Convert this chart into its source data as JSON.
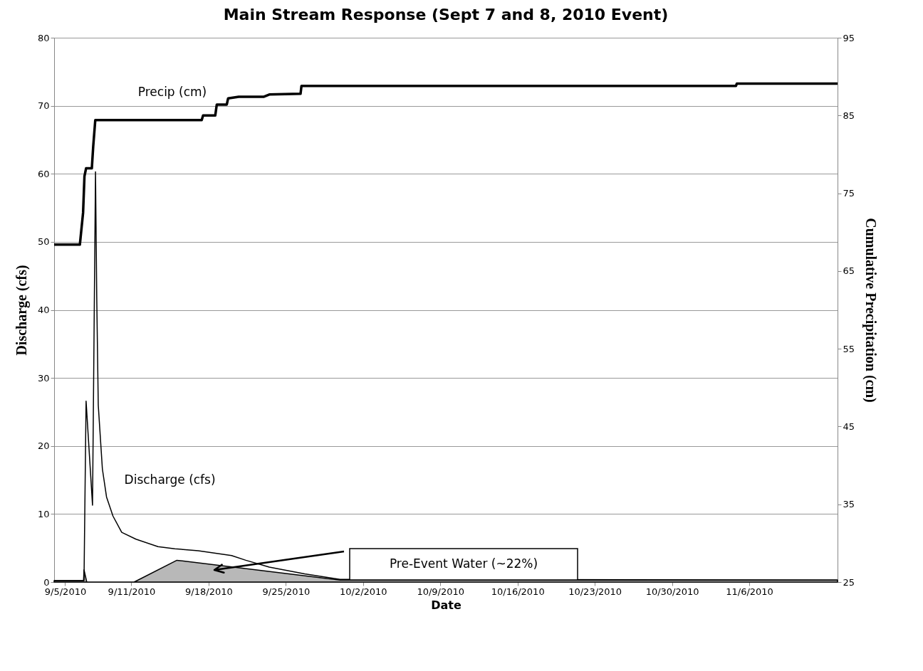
{
  "chart_data": {
    "type": "line",
    "title": "Main Stream Response (Sept 7 and 8, 2010 Event)",
    "xlabel": "Date",
    "ylabel": "Discharge (cfs)",
    "y2label": "Cumulative Precipitation (cm)",
    "xlim": [
      "2010-09-04",
      "2010-11-14"
    ],
    "xticks": [
      {
        "value": "2010-09-05",
        "label": "9/5/2010"
      },
      {
        "value": "2010-09-11",
        "label": "9/11/2010"
      },
      {
        "value": "2010-09-18",
        "label": "9/18/2010"
      },
      {
        "value": "2010-09-25",
        "label": "9/25/2010"
      },
      {
        "value": "2010-10-02",
        "label": "10/2/2010"
      },
      {
        "value": "2010-10-09",
        "label": "10/9/2010"
      },
      {
        "value": "2010-10-16",
        "label": "10/16/2010"
      },
      {
        "value": "2010-10-23",
        "label": "10/23/2010"
      },
      {
        "value": "2010-10-30",
        "label": "10/30/2010"
      },
      {
        "value": "2010-11-06",
        "label": "11/6/2010"
      }
    ],
    "ylim": [
      0,
      80
    ],
    "yticks": [
      0,
      10,
      20,
      30,
      40,
      50,
      60,
      70,
      80
    ],
    "y2lim": [
      25,
      95
    ],
    "y2ticks": [
      25,
      35,
      45,
      55,
      65,
      75,
      85,
      95
    ],
    "grid": "y",
    "series": [
      {
        "type": "area",
        "color": "#a6a6a6",
        "x": [
          "2010-09-04",
          "2010-09-06T16:00",
          "2010-09-06T17:00",
          "2010-09-06T23:00",
          "2010-09-11T06:00",
          "2010-09-15T03:00",
          "2010-09-29T22:00",
          "2010-11-14"
        ],
        "values": [
          0.2,
          0.2,
          1.8,
          0,
          0,
          3.2,
          0.3,
          0.3
        ]
      },
      {
        "name": "Discharge (cfs)",
        "color": "#000000",
        "x": [
          "2010-09-04",
          "2010-09-06T17:00",
          "2010-09-06T21:30",
          "2010-09-07T11:30",
          "2010-09-07T18:00",
          "2010-09-07T20:40",
          "2010-09-08T00:00",
          "2010-09-08T09:00",
          "2010-09-08T18:00",
          "2010-09-09T08:00",
          "2010-09-10T03:00",
          "2010-09-11T10:00",
          "2010-09-13T10:00",
          "2010-09-14T22:30",
          "2010-09-17T01:30",
          "2010-09-20T02:00",
          "2010-09-21T09:00",
          "2010-09-23T12:00",
          "2010-09-26T17:00",
          "2010-09-29T22:00",
          "2010-11-14"
        ],
        "values": [
          0.2,
          0.2,
          26.6,
          11.3,
          60.3,
          42,
          26,
          16.6,
          12.5,
          9.7,
          7.3,
          6.3,
          5.2,
          4.9,
          4.6,
          3.9,
          3.2,
          2.2,
          1.2,
          0.4,
          0.3
        ]
      },
      {
        "name": "Precip (cm)",
        "axis": "y2",
        "color": "#000000",
        "x": [
          "2010-09-04",
          "2010-09-06T08:00",
          "2010-09-06T15:00",
          "2010-09-06T18:00",
          "2010-09-06T21:30",
          "2010-09-07T10:00",
          "2010-09-07T13:00",
          "2010-09-07T17:30",
          "2010-09-17T09:00",
          "2010-09-17T12:00",
          "2010-09-18T14:30",
          "2010-09-18T17:45",
          "2010-09-19T15:30",
          "2010-09-19T18:30",
          "2010-09-20T17:30",
          "2010-09-22T23:30",
          "2010-09-23T12:00",
          "2010-09-26T08:00",
          "2010-09-26T10:00",
          "2010-11-04T19:00",
          "2010-11-04T21:00",
          "2010-11-14"
        ],
        "values": [
          68.4,
          68.4,
          72.5,
          77.2,
          78.2,
          78.2,
          81,
          84.4,
          84.4,
          85.0,
          85.0,
          86.4,
          86.4,
          87.2,
          87.4,
          87.4,
          87.7,
          87.8,
          88.8,
          88.8,
          89.1,
          89.1
        ]
      }
    ],
    "annotations": [
      "Pre-Event Water (~22%)"
    ]
  }
}
